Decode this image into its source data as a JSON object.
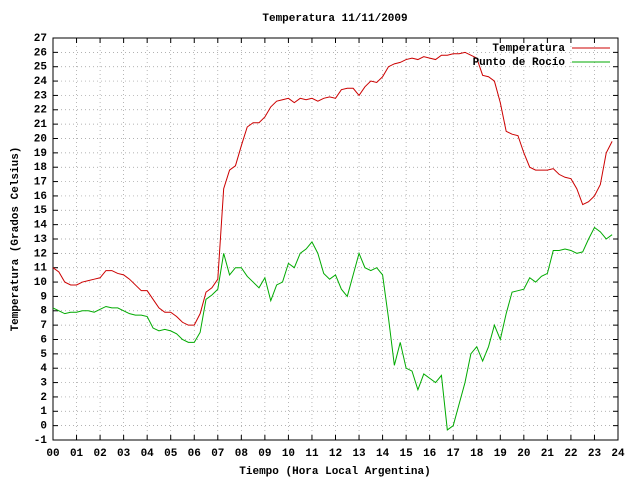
{
  "chart_data": {
    "type": "line",
    "title": "Temperatura 11/11/2009",
    "x_label": "Tiempo (Hora Local Argentina)",
    "y_label": "Temperatura (Grados Celsius)",
    "x": [
      0,
      0.25,
      0.5,
      0.75,
      1,
      1.25,
      1.5,
      1.75,
      2,
      2.25,
      2.5,
      2.75,
      3,
      3.25,
      3.5,
      3.75,
      4,
      4.25,
      4.5,
      4.75,
      5,
      5.25,
      5.5,
      5.75,
      6,
      6.25,
      6.5,
      6.75,
      7,
      7.25,
      7.5,
      7.75,
      8,
      8.25,
      8.5,
      8.75,
      9,
      9.25,
      9.5,
      9.75,
      10,
      10.25,
      10.5,
      10.75,
      11,
      11.25,
      11.5,
      11.75,
      12,
      12.25,
      12.5,
      12.75,
      13,
      13.25,
      13.5,
      13.75,
      14,
      14.25,
      14.5,
      14.75,
      15,
      15.25,
      15.5,
      15.75,
      16,
      16.25,
      16.5,
      16.75,
      17,
      17.25,
      17.5,
      17.75,
      18,
      18.25,
      18.5,
      18.75,
      19,
      19.25,
      19.5,
      19.75,
      20,
      20.25,
      20.5,
      20.75,
      21,
      21.25,
      21.5,
      21.75,
      22,
      22.25,
      22.5,
      22.75,
      23,
      23.25,
      23.5,
      23.75
    ],
    "series": [
      {
        "name": "Temperatura",
        "color": "#cc0000",
        "values": [
          11.0,
          10.7,
          10.0,
          9.8,
          9.8,
          10.0,
          10.1,
          10.2,
          10.3,
          10.8,
          10.8,
          10.6,
          10.5,
          10.2,
          9.8,
          9.4,
          9.4,
          8.8,
          8.2,
          7.9,
          7.9,
          7.6,
          7.2,
          7.0,
          7.0,
          7.8,
          9.3,
          9.6,
          10.2,
          16.5,
          17.8,
          18.1,
          19.5,
          20.8,
          21.1,
          21.1,
          21.5,
          22.2,
          22.6,
          22.7,
          22.8,
          22.5,
          22.8,
          22.7,
          22.8,
          22.6,
          22.8,
          22.9,
          22.8,
          23.4,
          23.5,
          23.5,
          23.0,
          23.6,
          24.0,
          23.9,
          24.3,
          25.0,
          25.2,
          25.3,
          25.5,
          25.6,
          25.5,
          25.7,
          25.6,
          25.5,
          25.8,
          25.8,
          25.9,
          25.9,
          26.0,
          25.8,
          25.6,
          24.4,
          24.3,
          24.0,
          22.5,
          20.5,
          20.3,
          20.2,
          19.0,
          18.0,
          17.8,
          17.8,
          17.8,
          17.9,
          17.5,
          17.3,
          17.2,
          16.5,
          15.4,
          15.6,
          16.0,
          16.8,
          19.0,
          19.8
        ]
      },
      {
        "name": "Punto de Rocío",
        "color": "#00aa00",
        "values": [
          8.2,
          8.0,
          7.8,
          7.9,
          7.9,
          8.0,
          8.0,
          7.9,
          8.1,
          8.3,
          8.2,
          8.2,
          8.0,
          7.8,
          7.7,
          7.7,
          7.6,
          6.8,
          6.6,
          6.7,
          6.6,
          6.4,
          6.0,
          5.8,
          5.8,
          6.5,
          8.8,
          9.1,
          9.5,
          12.0,
          10.5,
          11.0,
          11.0,
          10.4,
          10.0,
          9.6,
          10.3,
          8.7,
          9.8,
          10.0,
          11.3,
          11.0,
          12.0,
          12.3,
          12.8,
          12.0,
          10.6,
          10.2,
          10.5,
          9.5,
          9.0,
          10.5,
          12.0,
          11.0,
          10.8,
          11.0,
          10.5,
          7.5,
          4.2,
          5.8,
          4.0,
          3.8,
          2.5,
          3.6,
          3.3,
          3.0,
          3.5,
          -0.3,
          0.0,
          1.5,
          3.0,
          5.0,
          5.5,
          4.5,
          5.5,
          7.0,
          6.0,
          7.8,
          9.3,
          9.4,
          9.5,
          10.3,
          10.0,
          10.4,
          10.6,
          12.2,
          12.2,
          12.3,
          12.2,
          12.0,
          12.1,
          13.0,
          13.8,
          13.5,
          13.0,
          13.3
        ]
      }
    ],
    "xlim": [
      0,
      24
    ],
    "xticks": [
      {
        "value": 0,
        "label": "00"
      },
      {
        "value": 1,
        "label": "01"
      },
      {
        "value": 2,
        "label": "02"
      },
      {
        "value": 3,
        "label": "03"
      },
      {
        "value": 4,
        "label": "04"
      },
      {
        "value": 5,
        "label": "05"
      },
      {
        "value": 6,
        "label": "06"
      },
      {
        "value": 7,
        "label": "07"
      },
      {
        "value": 8,
        "label": "08"
      },
      {
        "value": 9,
        "label": "09"
      },
      10,
      11,
      12,
      13,
      14,
      15,
      16,
      17,
      18,
      19,
      20,
      21,
      22,
      23,
      24
    ],
    "ylim": [
      -1,
      27
    ],
    "yticks": [
      -1,
      0,
      1,
      2,
      3,
      4,
      5,
      6,
      7,
      8,
      9,
      10,
      11,
      12,
      13,
      14,
      15,
      16,
      17,
      18,
      19,
      20,
      21,
      22,
      23,
      24,
      25,
      26,
      27
    ],
    "grid": true,
    "legend": "top-right"
  }
}
